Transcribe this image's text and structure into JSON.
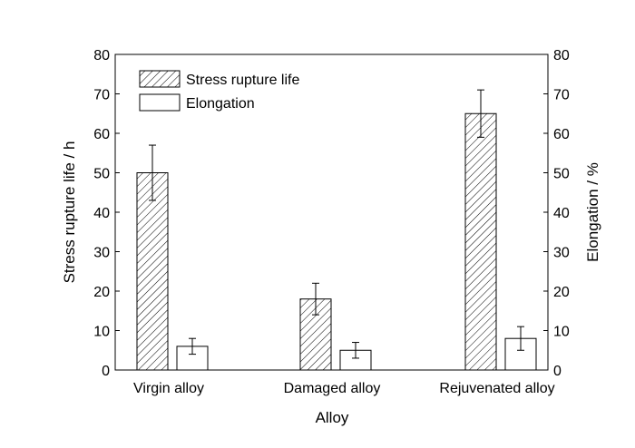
{
  "chart_data": {
    "type": "bar",
    "categories": [
      "Virgin alloy",
      "Damaged alloy",
      "Rejuvenated alloy"
    ],
    "xlabel": "Alloy",
    "ylabel": "Stress rupture life / h",
    "y2label": "Elongation / %",
    "ylim": [
      0,
      80
    ],
    "y2lim": [
      0,
      80
    ],
    "yticks": [
      0,
      10,
      20,
      30,
      40,
      50,
      60,
      70,
      80
    ],
    "legend_position": "top-left",
    "series": [
      {
        "name": "Stress rupture life",
        "pattern": "diagonal-hatch",
        "axis": "left",
        "values": [
          50,
          18,
          65
        ],
        "errors": [
          7,
          4,
          6
        ]
      },
      {
        "name": "Elongation",
        "pattern": "open",
        "axis": "right",
        "values": [
          6,
          5,
          8
        ],
        "errors": [
          2,
          2,
          3
        ]
      }
    ]
  }
}
